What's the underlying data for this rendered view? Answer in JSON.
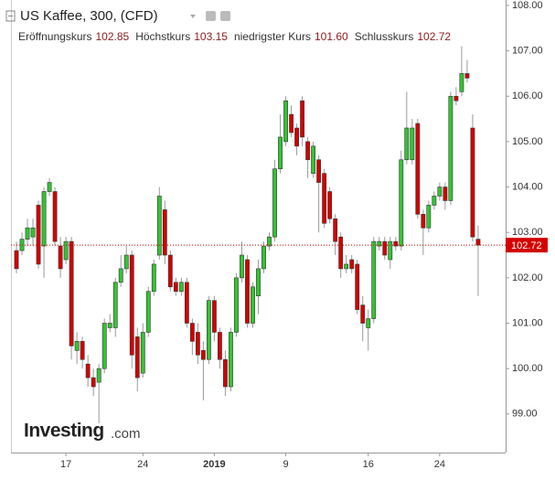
{
  "chart_data": {
    "type": "candlestick",
    "title": "US Kaffee, 300, (CFD)",
    "header": [
      {
        "label": "Eröffnungskurs",
        "value": "102.85"
      },
      {
        "label": "Höchstkurs",
        "value": "103.15"
      },
      {
        "label": "niedrigster Kurs",
        "value": "101.60"
      },
      {
        "label": "Schlusskurs",
        "value": "102.72"
      }
    ],
    "watermark": {
      "name": "Investing",
      "suffix": ".com"
    },
    "up_color": "#33c433",
    "down_color": "#d40000",
    "open": [
      102.6,
      102.6,
      102.85,
      102.9,
      103.6,
      102.7,
      103.9,
      103.9,
      102.7,
      102.4,
      102.8,
      100.4,
      100.6,
      100.1,
      99.8,
      99.7,
      100.0,
      100.9,
      100.9,
      101.9,
      102.2,
      102.5,
      100.7,
      99.9,
      100.8,
      101.7,
      102.5,
      103.5,
      102.5,
      101.9,
      101.7,
      101.9,
      101.0,
      100.8,
      100.4,
      100.2,
      101.5,
      100.8,
      100.2,
      99.6,
      100.8,
      102.0,
      102.4,
      101.0,
      101.6,
      102.2,
      102.7,
      102.9,
      104.4,
      105.0,
      105.6,
      105.3,
      105.9,
      105.0,
      104.3,
      104.6,
      104.3,
      103.9,
      103.3,
      102.9,
      102.2,
      102.4,
      102.3,
      101.4,
      100.9,
      101.1,
      102.7,
      102.8,
      102.4,
      102.8,
      102.7,
      104.6,
      104.6,
      105.4,
      103.4,
      103.1,
      103.6,
      103.8,
      104.0,
      103.7,
      106.0,
      106.1,
      106.5,
      105.3,
      102.85
    ],
    "high": [
      102.8,
      103.0,
      103.3,
      103.3,
      103.7,
      104.0,
      104.2,
      104.0,
      102.9,
      102.9,
      102.9,
      100.8,
      100.7,
      100.3,
      100.0,
      100.1,
      101.1,
      101.2,
      102.0,
      102.5,
      102.7,
      102.6,
      100.9,
      101.0,
      101.8,
      102.4,
      104.0,
      103.7,
      102.6,
      102.0,
      102.0,
      102.0,
      101.1,
      101.0,
      100.6,
      101.6,
      101.6,
      100.9,
      100.4,
      100.9,
      102.1,
      102.8,
      102.5,
      101.9,
      102.4,
      102.8,
      103.0,
      104.6,
      105.6,
      106.0,
      105.8,
      105.4,
      106.0,
      105.1,
      105.0,
      104.7,
      104.4,
      104.0,
      103.4,
      103.0,
      102.5,
      102.5,
      102.4,
      101.6,
      101.3,
      102.9,
      102.9,
      102.9,
      102.9,
      102.9,
      104.8,
      106.1,
      105.5,
      105.5,
      103.5,
      103.7,
      103.9,
      104.1,
      104.1,
      106.1,
      106.2,
      107.1,
      106.8,
      105.6,
      103.15
    ],
    "low": [
      102.1,
      102.5,
      102.7,
      102.7,
      102.2,
      102.0,
      103.8,
      102.7,
      102.0,
      102.3,
      100.2,
      100.1,
      100.0,
      99.6,
      99.4,
      98.8,
      99.9,
      100.8,
      100.7,
      101.8,
      102.1,
      100.0,
      99.5,
      99.8,
      100.7,
      101.6,
      102.4,
      102.3,
      101.7,
      101.6,
      101.6,
      100.9,
      100.3,
      100.1,
      99.3,
      100.1,
      100.6,
      100.0,
      99.4,
      99.5,
      100.7,
      101.9,
      100.9,
      100.9,
      101.2,
      102.1,
      102.6,
      102.8,
      104.3,
      104.9,
      105.1,
      104.7,
      104.9,
      104.2,
      104.2,
      103.0,
      103.1,
      103.2,
      102.5,
      102.0,
      102.1,
      102.1,
      101.2,
      100.6,
      100.4,
      101.0,
      102.6,
      102.4,
      102.2,
      102.6,
      102.6,
      104.5,
      104.5,
      103.3,
      102.5,
      103.0,
      103.5,
      103.7,
      103.5,
      103.6,
      105.8,
      106.0,
      106.3,
      102.8,
      101.6
    ],
    "close": [
      102.2,
      102.85,
      103.1,
      103.1,
      102.3,
      103.9,
      104.1,
      102.8,
      102.2,
      102.8,
      100.5,
      100.6,
      100.2,
      99.8,
      99.6,
      100.0,
      101.0,
      101.0,
      101.9,
      102.2,
      102.5,
      100.3,
      99.8,
      100.8,
      101.7,
      102.3,
      103.8,
      102.5,
      101.8,
      101.7,
      101.9,
      101.0,
      100.6,
      100.3,
      100.2,
      101.5,
      100.8,
      100.2,
      99.6,
      100.8,
      102.0,
      102.5,
      101.0,
      101.8,
      102.2,
      102.7,
      102.9,
      104.4,
      105.1,
      105.9,
      105.2,
      104.9,
      105.1,
      104.6,
      104.9,
      104.1,
      103.2,
      103.3,
      102.8,
      102.2,
      102.3,
      102.2,
      101.3,
      101.0,
      101.1,
      102.8,
      102.8,
      102.5,
      102.8,
      102.7,
      104.6,
      105.3,
      105.3,
      103.4,
      103.1,
      103.6,
      103.8,
      104.0,
      103.7,
      106.0,
      105.9,
      106.5,
      106.4,
      102.9,
      102.72
    ],
    "xlim": [
      -1,
      89
    ],
    "xticks": [
      {
        "value": 9,
        "label": "17"
      },
      {
        "value": 23,
        "label": "24"
      },
      {
        "value": 36,
        "label": "2019"
      },
      {
        "value": 49,
        "label": "9"
      },
      {
        "value": 64,
        "label": "16"
      },
      {
        "value": 77,
        "label": "24"
      }
    ],
    "ylim": [
      98.15,
      108.12
    ],
    "yticks": [
      {
        "value": 99,
        "label": "99.00"
      },
      {
        "value": 100,
        "label": "100.00"
      },
      {
        "value": 101,
        "label": "101.00"
      },
      {
        "value": 102,
        "label": "102.00"
      },
      {
        "value": 103,
        "label": "103.00"
      },
      {
        "value": 104,
        "label": "104.00"
      },
      {
        "value": 105,
        "label": "105.00"
      },
      {
        "value": 106,
        "label": "106.00"
      },
      {
        "value": 107,
        "label": "107.00"
      },
      {
        "value": 108,
        "label": "108.00"
      }
    ]
  }
}
